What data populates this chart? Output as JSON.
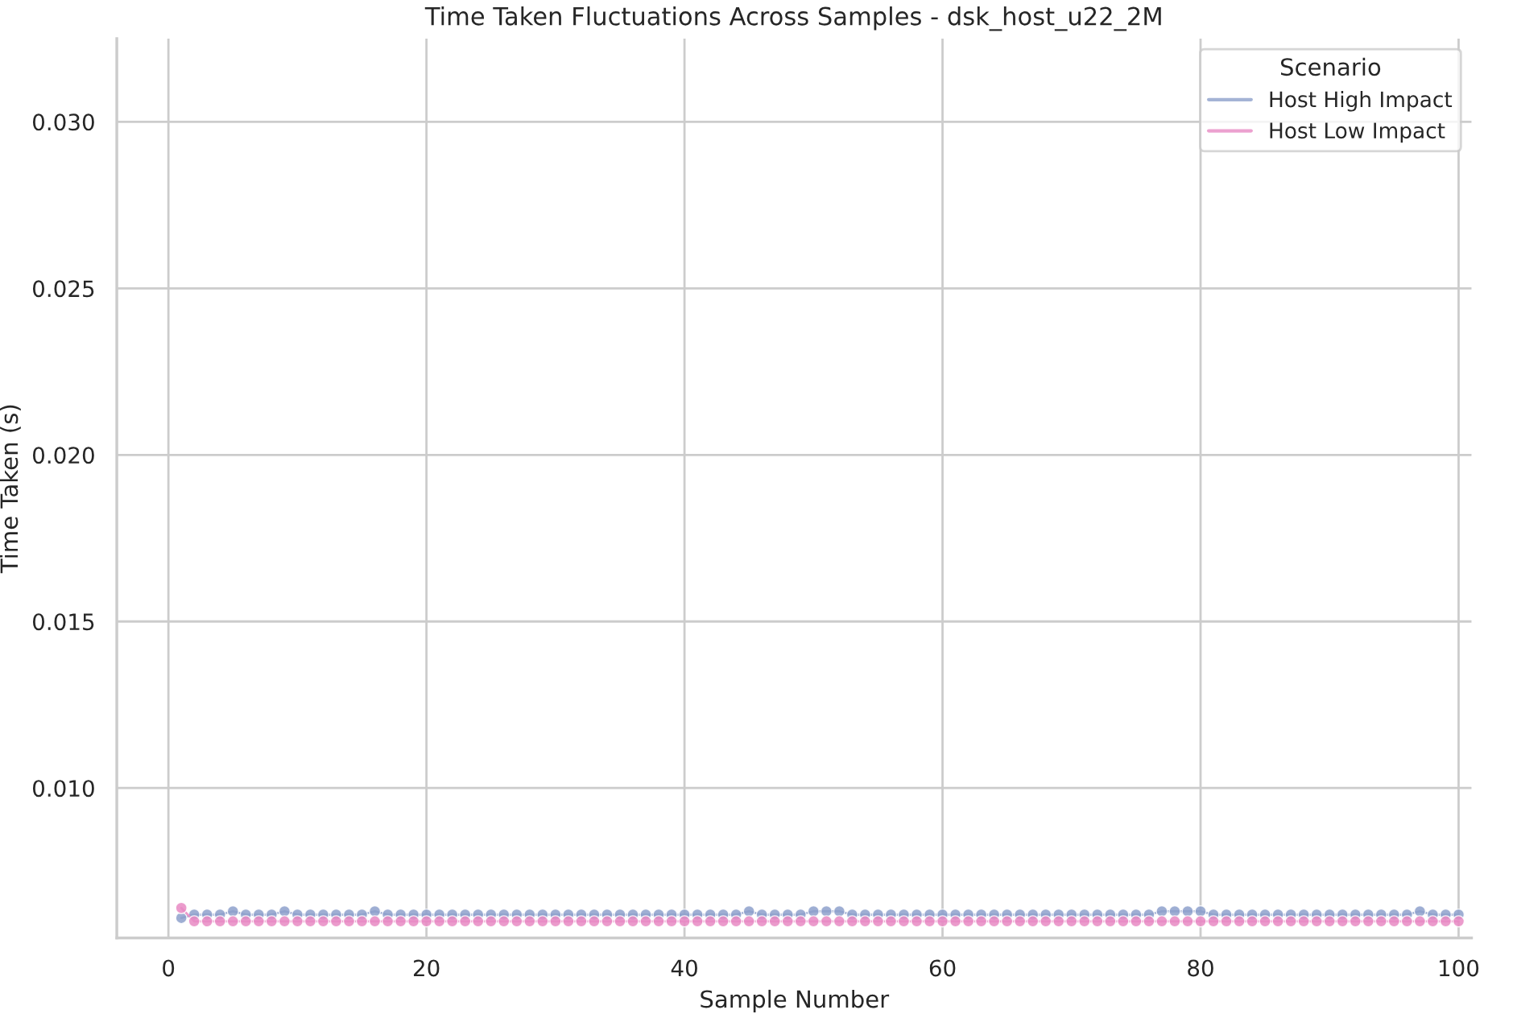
{
  "chart_data": {
    "type": "line",
    "title": "Time Taken Fluctuations Across Samples - dsk_host_u22_2M",
    "xlabel": "Sample Number",
    "ylabel": "Time Taken (s)",
    "legend_title": "Scenario",
    "legend": "top right",
    "grid": true,
    "marker": "circle",
    "line_style": "solid",
    "x": [
      1,
      2,
      3,
      4,
      5,
      6,
      7,
      8,
      9,
      10,
      11,
      12,
      13,
      14,
      15,
      16,
      17,
      18,
      19,
      20,
      21,
      22,
      23,
      24,
      25,
      26,
      27,
      28,
      29,
      30,
      31,
      32,
      33,
      34,
      35,
      36,
      37,
      38,
      39,
      40,
      41,
      42,
      43,
      44,
      45,
      46,
      47,
      48,
      49,
      50,
      51,
      52,
      53,
      54,
      55,
      56,
      57,
      58,
      59,
      60,
      61,
      62,
      63,
      64,
      65,
      66,
      67,
      68,
      69,
      70,
      71,
      72,
      73,
      74,
      75,
      76,
      77,
      78,
      79,
      80,
      81,
      82,
      83,
      84,
      85,
      86,
      87,
      88,
      89,
      90,
      91,
      92,
      93,
      94,
      95,
      96,
      97,
      98,
      99,
      100
    ],
    "xlim": [
      -4,
      101
    ],
    "xticks": [
      0,
      20,
      40,
      60,
      80,
      100
    ],
    "ylim": [
      0.0055,
      0.0325
    ],
    "yticks": [
      {
        "value": 0.01,
        "label": "0.010"
      },
      {
        "value": 0.015,
        "label": "0.015"
      },
      {
        "value": 0.02,
        "label": "0.020"
      },
      {
        "value": 0.025,
        "label": "0.025"
      },
      {
        "value": 0.03,
        "label": "0.030"
      }
    ],
    "series": [
      {
        "name": "Host High Impact",
        "color": "#8da0cb",
        "values": [
          0.0061,
          0.0062,
          0.0062,
          0.0062,
          0.0063,
          0.0062,
          0.0062,
          0.0062,
          0.0063,
          0.0062,
          0.0062,
          0.0062,
          0.0062,
          0.0062,
          0.0062,
          0.0063,
          0.0062,
          0.0062,
          0.0062,
          0.0062,
          0.0062,
          0.0062,
          0.0062,
          0.0062,
          0.0062,
          0.0062,
          0.0062,
          0.0062,
          0.0062,
          0.0062,
          0.0062,
          0.0062,
          0.0062,
          0.0062,
          0.0062,
          0.0062,
          0.0062,
          0.0062,
          0.0062,
          0.0062,
          0.0062,
          0.0062,
          0.0062,
          0.0062,
          0.0063,
          0.0062,
          0.0062,
          0.0062,
          0.0062,
          0.0063,
          0.0063,
          0.0063,
          0.0062,
          0.0062,
          0.0062,
          0.0062,
          0.0062,
          0.0062,
          0.0062,
          0.0062,
          0.0062,
          0.0062,
          0.0062,
          0.0062,
          0.0062,
          0.0062,
          0.0062,
          0.0062,
          0.0062,
          0.0062,
          0.0062,
          0.0062,
          0.0062,
          0.0062,
          0.0062,
          0.0062,
          0.0063,
          0.0063,
          0.0063,
          0.0063,
          0.0062,
          0.0062,
          0.0062,
          0.0062,
          0.0062,
          0.0062,
          0.0062,
          0.0062,
          0.0062,
          0.0062,
          0.0062,
          0.0062,
          0.0062,
          0.0062,
          0.0062,
          0.0062,
          0.0063,
          0.0062,
          0.0062,
          0.0062
        ]
      },
      {
        "name": "Host Low Impact",
        "color": "#e78ac3",
        "values": [
          0.0064,
          0.006,
          0.006,
          0.006,
          0.006,
          0.006,
          0.006,
          0.006,
          0.006,
          0.006,
          0.006,
          0.006,
          0.006,
          0.006,
          0.006,
          0.006,
          0.006,
          0.006,
          0.006,
          0.006,
          0.006,
          0.006,
          0.006,
          0.006,
          0.006,
          0.006,
          0.006,
          0.006,
          0.006,
          0.006,
          0.006,
          0.006,
          0.006,
          0.006,
          0.006,
          0.006,
          0.006,
          0.006,
          0.006,
          0.006,
          0.006,
          0.006,
          0.006,
          0.006,
          0.006,
          0.006,
          0.006,
          0.006,
          0.006,
          0.006,
          0.006,
          0.006,
          0.006,
          0.006,
          0.006,
          0.006,
          0.006,
          0.006,
          0.006,
          0.006,
          0.006,
          0.006,
          0.006,
          0.006,
          0.006,
          0.006,
          0.006,
          0.006,
          0.006,
          0.006,
          0.006,
          0.006,
          0.006,
          0.006,
          0.006,
          0.006,
          0.006,
          0.006,
          0.006,
          0.006,
          0.006,
          0.006,
          0.006,
          0.006,
          0.006,
          0.006,
          0.006,
          0.006,
          0.006,
          0.006,
          0.006,
          0.006,
          0.006,
          0.006,
          0.006,
          0.006,
          0.006,
          0.006,
          0.006,
          0.006
        ]
      }
    ]
  }
}
